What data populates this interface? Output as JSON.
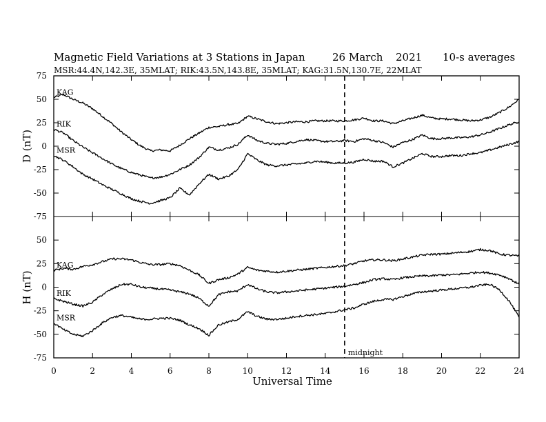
{
  "chart_data": {
    "type": "line",
    "title_left": "Magnetic Field Variations at 3 Stations in Japan",
    "title_date": "26 March",
    "title_year": "2021",
    "title_right": "10-s averages",
    "subtitle": "MSR:44.4N,142.3E, 35MLAT;  RIK:43.5N,143.8E, 35MLAT;  KAG:31.5N,130.7E, 22MLAT",
    "xlabel": "Universal Time",
    "xlim": [
      0,
      24
    ],
    "x_ticks": [
      "0",
      "2",
      "4",
      "6",
      "8",
      "10",
      "12",
      "14",
      "16",
      "18",
      "20",
      "22",
      "24"
    ],
    "annotation": {
      "text": "midnight",
      "x": 15
    },
    "panels": [
      {
        "ylabel": "D (nT)",
        "ylim": [
          -75,
          75
        ],
        "y_ticks": [
          "75",
          "50",
          "25",
          "0",
          "-25",
          "-50",
          "-75"
        ],
        "series": [
          {
            "name": "KAG",
            "x": [
              0,
              0.5,
              1,
              1.5,
              2,
              2.5,
              3,
              3.5,
              4,
              4.5,
              5,
              5.5,
              6,
              6.5,
              7,
              7.5,
              8,
              8.5,
              9,
              9.5,
              10,
              10.5,
              11,
              11.5,
              12,
              12.5,
              13,
              13.5,
              14,
              14.5,
              15,
              15.5,
              16,
              16.5,
              17,
              17.5,
              18,
              18.5,
              19,
              19.5,
              20,
              20.5,
              21,
              21.5,
              22,
              22.5,
              23,
              23.5,
              24
            ],
            "y": [
              52,
              55,
              50,
              46,
              40,
              32,
              24,
              15,
              7,
              0,
              -5,
              -4,
              -5,
              1,
              8,
              14,
              20,
              21,
              23,
              24,
              32,
              29,
              26,
              24,
              25,
              26,
              26,
              27,
              27,
              27,
              27,
              28,
              30,
              27,
              27,
              24,
              27,
              30,
              33,
              30,
              29,
              29,
              28,
              27,
              28,
              31,
              36,
              42,
              50
            ]
          },
          {
            "name": "RIK",
            "x": [
              0,
              0.5,
              1,
              1.5,
              2,
              2.5,
              3,
              3.5,
              4,
              4.5,
              5,
              5.5,
              6,
              6.5,
              7,
              7.5,
              8,
              8.5,
              9,
              9.5,
              10,
              10.5,
              11,
              11.5,
              12,
              12.5,
              13,
              13.5,
              14,
              14.5,
              15,
              15.5,
              16,
              16.5,
              17,
              17.5,
              18,
              18.5,
              19,
              19.5,
              20,
              20.5,
              21,
              21.5,
              22,
              22.5,
              23,
              23.5,
              24
            ],
            "y": [
              18,
              14,
              6,
              -1,
              -7,
              -13,
              -19,
              -24,
              -28,
              -31,
              -34,
              -33,
              -30,
              -25,
              -20,
              -12,
              -1,
              -4,
              -2,
              2,
              12,
              6,
              3,
              2,
              3,
              5,
              7,
              6,
              5,
              5,
              6,
              5,
              8,
              6,
              4,
              -1,
              4,
              7,
              12,
              8,
              8,
              9,
              9,
              10,
              12,
              15,
              19,
              23,
              26
            ]
          },
          {
            "name": "MSR",
            "x": [
              0,
              0.5,
              1,
              1.5,
              2,
              2.5,
              3,
              3.5,
              4,
              4.5,
              5,
              5.5,
              6,
              6.5,
              7,
              7.5,
              8,
              8.5,
              9,
              9.5,
              10,
              10.5,
              11,
              11.5,
              12,
              12.5,
              13,
              13.5,
              14,
              14.5,
              15,
              15.5,
              16,
              16.5,
              17,
              17.5,
              18,
              18.5,
              19,
              19.5,
              20,
              20.5,
              21,
              21.5,
              22,
              22.5,
              23,
              23.5,
              24
            ],
            "y": [
              -10,
              -15,
              -22,
              -30,
              -35,
              -41,
              -46,
              -51,
              -56,
              -59,
              -61,
              -58,
              -55,
              -45,
              -52,
              -40,
              -30,
              -35,
              -32,
              -25,
              -8,
              -15,
              -20,
              -21,
              -20,
              -19,
              -18,
              -16,
              -17,
              -18,
              -18,
              -17,
              -14,
              -16,
              -16,
              -22,
              -18,
              -13,
              -8,
              -11,
              -11,
              -10,
              -10,
              -8,
              -7,
              -4,
              -1,
              2,
              5
            ]
          }
        ]
      },
      {
        "ylabel": "H (nT)",
        "ylim": [
          -75,
          75
        ],
        "y_ticks": [
          "75",
          "50",
          "25",
          "0",
          "-25",
          "-50",
          "-75"
        ],
        "series": [
          {
            "name": "KAG",
            "x": [
              0,
              0.5,
              1,
              1.5,
              2,
              2.5,
              3,
              3.5,
              4,
              4.5,
              5,
              5.5,
              6,
              6.5,
              7,
              7.5,
              8,
              8.5,
              9,
              9.5,
              10,
              10.5,
              11,
              11.5,
              12,
              12.5,
              13,
              13.5,
              14,
              14.5,
              15,
              15.5,
              16,
              16.5,
              17,
              17.5,
              18,
              18.5,
              19,
              19.5,
              20,
              20.5,
              21,
              21.5,
              22,
              22.5,
              23,
              23.5,
              24
            ],
            "y": [
              18,
              20,
              19,
              22,
              24,
              27,
              30,
              30,
              29,
              26,
              24,
              24,
              25,
              23,
              18,
              13,
              4,
              8,
              10,
              14,
              21,
              18,
              17,
              16,
              17,
              18,
              19,
              20,
              21,
              22,
              23,
              25,
              28,
              29,
              29,
              28,
              30,
              32,
              34,
              35,
              35,
              36,
              37,
              38,
              40,
              39,
              35,
              34,
              33
            ]
          },
          {
            "name": "RIK",
            "x": [
              0,
              0.5,
              1,
              1.5,
              2,
              2.5,
              3,
              3.5,
              4,
              4.5,
              5,
              5.5,
              6,
              6.5,
              7,
              7.5,
              8,
              8.5,
              9,
              9.5,
              10,
              10.5,
              11,
              11.5,
              12,
              12.5,
              13,
              13.5,
              14,
              14.5,
              15,
              15.5,
              16,
              16.5,
              17,
              17.5,
              18,
              18.5,
              19,
              19.5,
              20,
              20.5,
              21,
              21.5,
              22,
              22.5,
              23,
              23.5,
              24
            ],
            "y": [
              -12,
              -15,
              -18,
              -20,
              -16,
              -8,
              -2,
              3,
              3,
              0,
              -1,
              -2,
              -3,
              -5,
              -7,
              -12,
              -20,
              -8,
              -5,
              -4,
              3,
              -2,
              -5,
              -6,
              -5,
              -4,
              -3,
              -2,
              -1,
              0,
              1,
              3,
              5,
              8,
              9,
              8,
              10,
              11,
              12,
              12,
              13,
              13,
              14,
              15,
              16,
              15,
              13,
              9,
              3
            ]
          },
          {
            "name": "MSR",
            "x": [
              0,
              0.5,
              1,
              1.5,
              2,
              2.5,
              3,
              3.5,
              4,
              4.5,
              5,
              5.5,
              6,
              6.5,
              7,
              7.5,
              8,
              8.5,
              9,
              9.5,
              10,
              10.5,
              11,
              11.5,
              12,
              12.5,
              13,
              13.5,
              14,
              14.5,
              15,
              15.5,
              16,
              16.5,
              17,
              17.5,
              18,
              18.5,
              19,
              19.5,
              20,
              20.5,
              21,
              21.5,
              22,
              22.5,
              23,
              23.5,
              24
            ],
            "y": [
              -38,
              -45,
              -50,
              -52,
              -46,
              -38,
              -32,
              -30,
              -32,
              -34,
              -34,
              -33,
              -33,
              -35,
              -40,
              -44,
              -51,
              -40,
              -37,
              -34,
              -26,
              -31,
              -34,
              -34,
              -33,
              -31,
              -30,
              -29,
              -28,
              -26,
              -24,
              -22,
              -18,
              -15,
              -13,
              -13,
              -10,
              -7,
              -5,
              -4,
              -3,
              -2,
              -1,
              0,
              2,
              3,
              -3,
              -15,
              -32
            ]
          }
        ]
      }
    ]
  }
}
